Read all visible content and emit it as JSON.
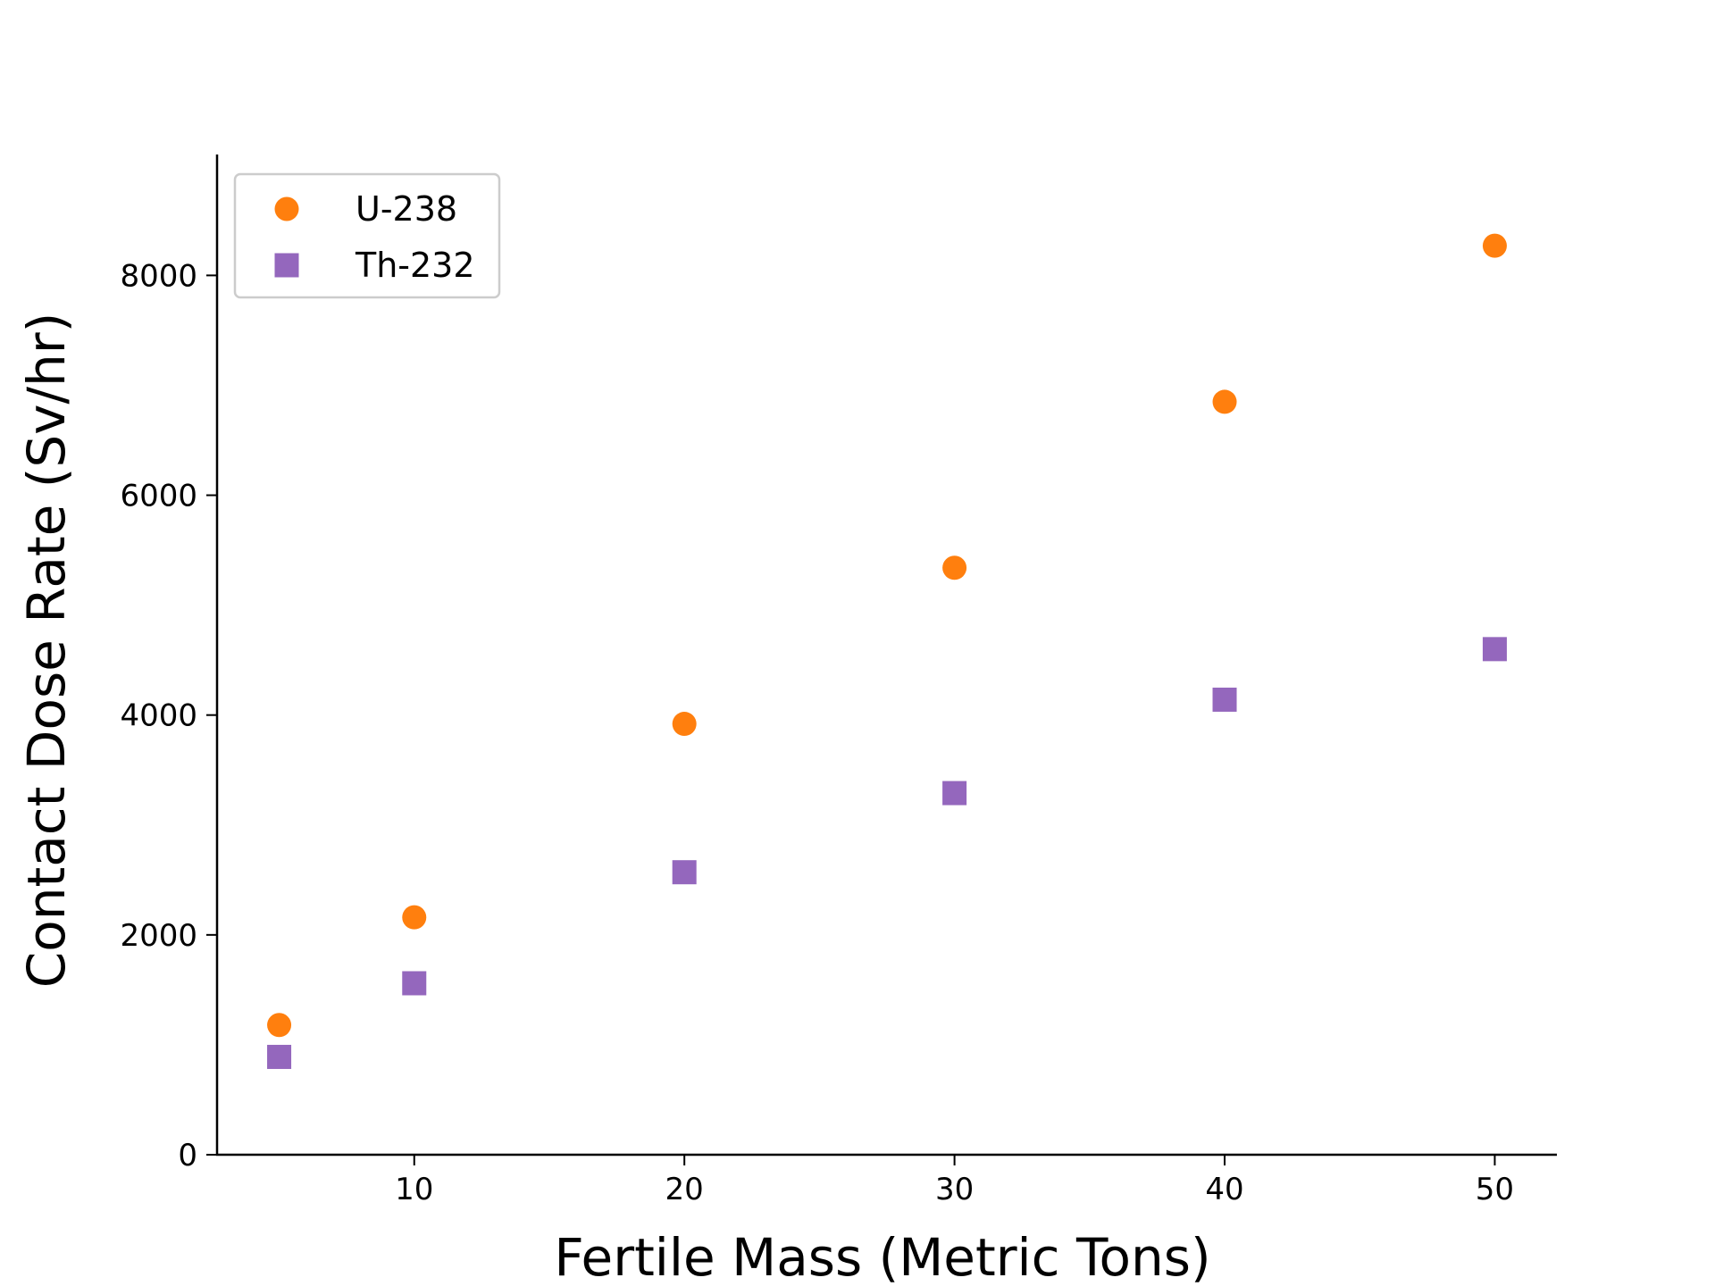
{
  "chart_data": {
    "type": "scatter",
    "title": "",
    "xlabel": "Fertile Mass (Metric Tons)",
    "ylabel": "Contact Dose Rate (Sv/hr)",
    "xlim": [
      2.7,
      52.3
    ],
    "ylim": [
      0,
      9100
    ],
    "xticks": [
      10,
      20,
      30,
      40,
      50
    ],
    "yticks": [
      0,
      2000,
      4000,
      6000,
      8000
    ],
    "grid": false,
    "legend_position": "top-left",
    "series": [
      {
        "name": "U-238",
        "marker": "circle",
        "color": "#ff7f0e",
        "x": [
          5,
          10,
          20,
          30,
          40,
          50
        ],
        "y": [
          1180,
          2160,
          3920,
          5340,
          6850,
          8270
        ]
      },
      {
        "name": "Th-232",
        "marker": "square",
        "color": "#9467bd",
        "x": [
          5,
          10,
          20,
          30,
          40,
          50
        ],
        "y": [
          890,
          1560,
          2570,
          3290,
          4140,
          4600
        ]
      }
    ]
  }
}
